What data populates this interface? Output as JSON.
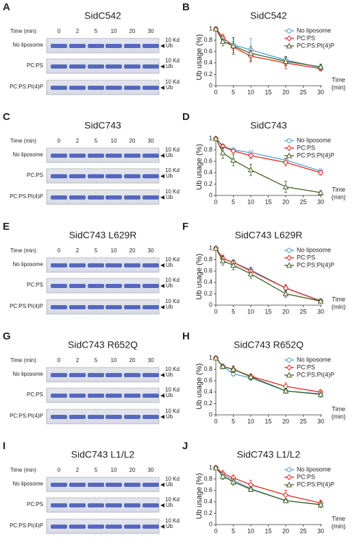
{
  "gels": [
    {
      "panel": "A",
      "title": "SidC542",
      "time_label": "Time (min)",
      "times": [
        "0",
        "2",
        "5",
        "10",
        "20",
        "30"
      ],
      "rows": [
        "No liposome",
        "PC:PS",
        "PC:PS:PI(4)P"
      ],
      "size_marker": "10 Kd",
      "band": "Ub"
    },
    {
      "panel": "C",
      "title": "SidC743",
      "time_label": "Time (min)",
      "times": [
        "0",
        "2",
        "5",
        "10",
        "20",
        "30"
      ],
      "rows": [
        "No liposome",
        "PC:PS",
        "PC:PS:PI(4)P"
      ],
      "size_marker": "10 Kd",
      "band": "Ub"
    },
    {
      "panel": "E",
      "title": "SidC743 L629R",
      "time_label": "Time (min)",
      "times": [
        "0",
        "2",
        "5",
        "10",
        "20",
        "30"
      ],
      "rows": [
        "No liposome",
        "PC:PS",
        "PC:PS:PI(4)P"
      ],
      "size_marker": "10 Kd",
      "band": "Ub"
    },
    {
      "panel": "G",
      "title": "SidC743 R652Q",
      "time_label": "Time (min)",
      "times": [
        "0",
        "2",
        "5",
        "10",
        "20",
        "30"
      ],
      "rows": [
        "No liposome",
        "PC:PS",
        "PC:PS:PI(4)P"
      ],
      "size_marker": "10 Kd",
      "band": "Ub"
    },
    {
      "panel": "I",
      "title": "SidC743 L1/L2",
      "time_label": "Time (min)",
      "times": [
        "0",
        "2",
        "5",
        "10",
        "20",
        "30"
      ],
      "rows": [
        "No liposome",
        "PC:PS",
        "PC:PS:PI(4)P"
      ],
      "size_marker": "10 Kd",
      "band": "Ub"
    }
  ],
  "chart_data": [
    {
      "type": "line",
      "panel": "B",
      "title": "SidC542",
      "ylabel": "Ub usage (%)",
      "xlabel": [
        "Time",
        "(min)"
      ],
      "x": [
        0,
        2,
        5,
        10,
        20,
        30
      ],
      "xlim": [
        0,
        30
      ],
      "xticks": [
        0,
        5,
        10,
        15,
        20,
        25,
        30
      ],
      "ylim": [
        0,
        1
      ],
      "yticks": [
        0,
        0.2,
        0.4,
        0.6,
        0.8,
        1
      ],
      "legend": "top-right",
      "series": [
        {
          "name": "No liposome",
          "color": "#4a9fd4",
          "marker": "circle",
          "values": [
            1,
            0.82,
            0.72,
            0.63,
            0.45,
            0.32
          ],
          "errors": [
            0.02,
            0.06,
            0.1,
            0.2,
            0.06,
            0.05
          ]
        },
        {
          "name": "PC:PS",
          "color": "#e8231b",
          "marker": "diamond",
          "values": [
            1,
            0.85,
            0.68,
            0.52,
            0.4,
            0.3
          ],
          "errors": [
            0.02,
            0.05,
            0.1,
            0.1,
            0.1,
            0.04
          ]
        },
        {
          "name": "PC:PS:PI(4)P",
          "color": "#3d5e1f",
          "marker": "triangle",
          "values": [
            1,
            0.78,
            0.7,
            0.57,
            0.43,
            0.33
          ],
          "errors": [
            0.02,
            0.08,
            0.15,
            0.12,
            0.08,
            0.05
          ]
        }
      ]
    },
    {
      "type": "line",
      "panel": "D",
      "title": "SidC743",
      "ylabel": "Ub usage (%)",
      "xlabel": [
        "Time",
        "(min)"
      ],
      "x": [
        0,
        2,
        5,
        10,
        20,
        30
      ],
      "xlim": [
        0,
        30
      ],
      "xticks": [
        0,
        5,
        10,
        15,
        20,
        25,
        30
      ],
      "ylim": [
        0,
        1
      ],
      "yticks": [
        0,
        0.2,
        0.4,
        0.6,
        0.8,
        1
      ],
      "legend": "top-right",
      "series": [
        {
          "name": "No liposome",
          "color": "#4a9fd4",
          "marker": "circle",
          "values": [
            1,
            0.87,
            0.8,
            0.75,
            0.62,
            0.43
          ],
          "errors": [
            0.02,
            0.03,
            0.02,
            0.03,
            0.03,
            0.03
          ]
        },
        {
          "name": "PC:PS",
          "color": "#e8231b",
          "marker": "diamond",
          "values": [
            1,
            0.86,
            0.78,
            0.7,
            0.58,
            0.4
          ],
          "errors": [
            0.02,
            0.04,
            0.03,
            0.05,
            0.06,
            0.04
          ]
        },
        {
          "name": "PC:PS:PI(4)P",
          "color": "#3d5e1f",
          "marker": "triangle",
          "values": [
            1,
            0.75,
            0.62,
            0.45,
            0.15,
            0.05
          ],
          "errors": [
            0.02,
            0.1,
            0.1,
            0.1,
            0.1,
            0.03
          ]
        }
      ]
    },
    {
      "type": "line",
      "panel": "F",
      "title": "SidC743 L629R",
      "ylabel": "Ub usage (%)",
      "xlabel": [
        "Time",
        "(min)"
      ],
      "x": [
        0,
        2,
        5,
        10,
        20,
        30
      ],
      "xlim": [
        0,
        30
      ],
      "xticks": [
        0,
        5,
        10,
        15,
        20,
        25,
        30
      ],
      "ylim": [
        0,
        1
      ],
      "yticks": [
        0,
        0.2,
        0.4,
        0.6,
        0.8,
        1
      ],
      "legend": "top-right",
      "series": [
        {
          "name": "No liposome",
          "color": "#4a9fd4",
          "marker": "circle",
          "values": [
            1,
            0.82,
            0.75,
            0.62,
            0.3,
            0.08
          ],
          "errors": [
            0.02,
            0.05,
            0.04,
            0.05,
            0.05,
            0.03
          ]
        },
        {
          "name": "PC:PS",
          "color": "#e8231b",
          "marker": "diamond",
          "values": [
            1,
            0.82,
            0.75,
            0.6,
            0.3,
            0.07
          ],
          "errors": [
            0.02,
            0.06,
            0.05,
            0.06,
            0.06,
            0.03
          ]
        },
        {
          "name": "PC:PS:PI(4)P",
          "color": "#3d5e1f",
          "marker": "triangle",
          "values": [
            1,
            0.78,
            0.7,
            0.55,
            0.2,
            0.07
          ],
          "errors": [
            0.02,
            0.08,
            0.08,
            0.08,
            0.06,
            0.03
          ]
        }
      ]
    },
    {
      "type": "line",
      "panel": "H",
      "title": "SidC743 R652Q",
      "ylabel": "Ub usage (%)",
      "xlabel": [
        "Time",
        "(min)"
      ],
      "x": [
        0,
        2,
        5,
        10,
        20,
        30
      ],
      "xlim": [
        0,
        30
      ],
      "xticks": [
        0,
        5,
        10,
        15,
        20,
        25,
        30
      ],
      "ylim": [
        0,
        1
      ],
      "yticks": [
        0,
        0.2,
        0.4,
        0.6,
        0.8,
        1
      ],
      "legend": "top-right",
      "series": [
        {
          "name": "No liposome",
          "color": "#4a9fd4",
          "marker": "circle",
          "values": [
            1,
            0.85,
            0.72,
            0.65,
            0.42,
            0.37
          ],
          "errors": [
            0.02,
            0.04,
            0.04,
            0.05,
            0.04,
            0.04
          ]
        },
        {
          "name": "PC:PS",
          "color": "#e8231b",
          "marker": "diamond",
          "values": [
            1,
            0.85,
            0.8,
            0.68,
            0.5,
            0.4
          ],
          "errors": [
            0.02,
            0.04,
            0.05,
            0.04,
            0.06,
            0.04
          ]
        },
        {
          "name": "PC:PS:PI(4)P",
          "color": "#3d5e1f",
          "marker": "triangle",
          "values": [
            1,
            0.85,
            0.8,
            0.67,
            0.42,
            0.36
          ],
          "errors": [
            0.02,
            0.04,
            0.06,
            0.05,
            0.04,
            0.05
          ]
        }
      ]
    },
    {
      "type": "line",
      "panel": "J",
      "title": "SidC743 L1/L2",
      "ylabel": "Ub usage (%)",
      "xlabel": [
        "Time",
        "(min)"
      ],
      "x": [
        0,
        2,
        5,
        10,
        20,
        30
      ],
      "xlim": [
        0,
        30
      ],
      "xticks": [
        0,
        5,
        10,
        15,
        20,
        25,
        30
      ],
      "ylim": [
        0,
        1
      ],
      "yticks": [
        0,
        0.2,
        0.4,
        0.6,
        0.8,
        1
      ],
      "legend": "top-right",
      "series": [
        {
          "name": "No liposome",
          "color": "#4a9fd4",
          "marker": "circle",
          "values": [
            1,
            0.88,
            0.78,
            0.63,
            0.42,
            0.35
          ],
          "errors": [
            0.02,
            0.04,
            0.04,
            0.04,
            0.03,
            0.05
          ]
        },
        {
          "name": "PC:PS",
          "color": "#e8231b",
          "marker": "diamond",
          "values": [
            1,
            0.9,
            0.82,
            0.7,
            0.52,
            0.38
          ],
          "errors": [
            0.02,
            0.05,
            0.05,
            0.08,
            0.08,
            0.05
          ]
        },
        {
          "name": "PC:PS:PI(4)P",
          "color": "#3d5e1f",
          "marker": "triangle",
          "values": [
            1,
            0.85,
            0.75,
            0.62,
            0.42,
            0.35
          ],
          "errors": [
            0.02,
            0.06,
            0.06,
            0.04,
            0.03,
            0.05
          ]
        }
      ]
    }
  ]
}
